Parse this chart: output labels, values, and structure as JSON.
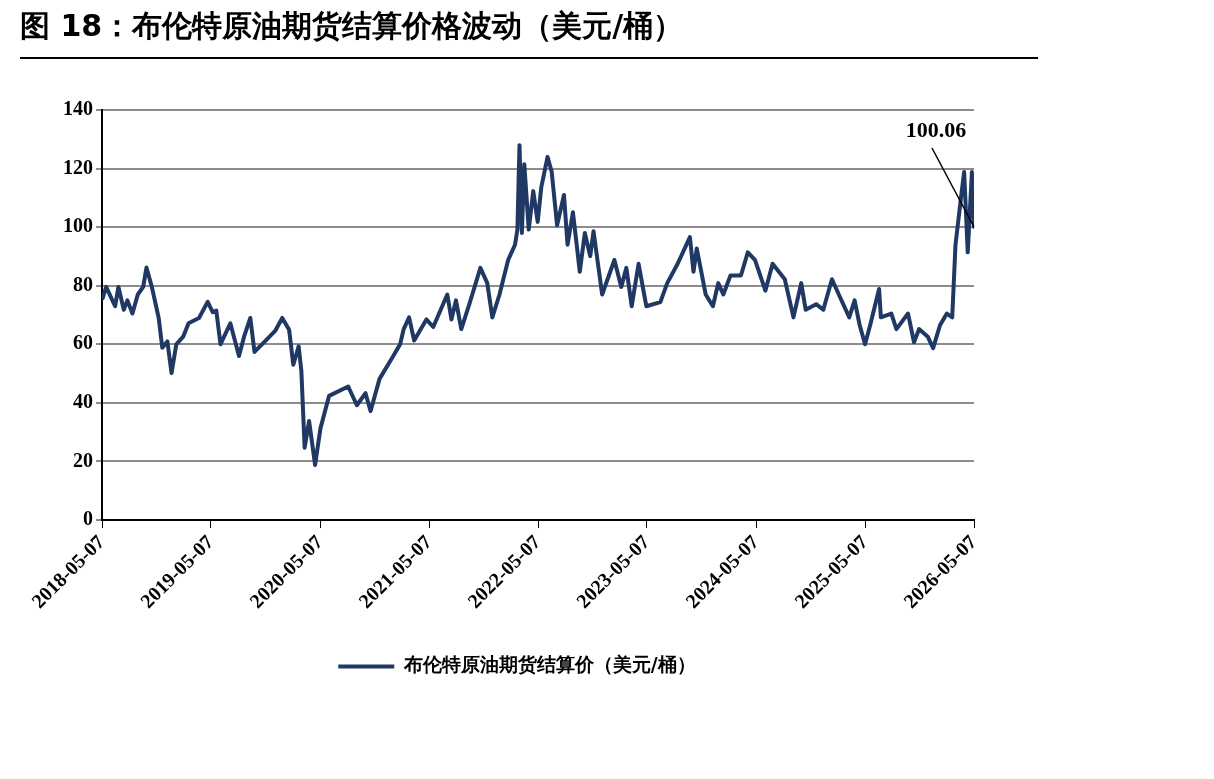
{
  "chart_data": {
    "type": "line",
    "title": "图 18：布伦特原油期货结算价格波动（美元/桶）",
    "x": [
      "2018-05-09",
      "2018-05-21",
      "2018-06-20",
      "2018-07-01",
      "2018-07-19",
      "2018-07-31",
      "2018-08-17",
      "2018-09-04",
      "2018-09-22",
      "2018-10-03",
      "2018-10-21",
      "2018-11-13",
      "2018-11-25",
      "2018-12-12",
      "2018-12-26",
      "2019-01-11",
      "2019-02-03",
      "2019-02-21",
      "2019-03-28",
      "2019-04-26",
      "2019-05-13",
      "2019-05-25",
      "2019-06-08",
      "2019-07-11",
      "2019-08-09",
      "2019-08-26",
      "2019-09-16",
      "2019-09-30",
      "2019-11-04",
      "2019-12-09",
      "2020-01-01",
      "2020-01-24",
      "2020-02-07",
      "2020-02-25",
      "2020-03-05",
      "2020-03-16",
      "2020-03-31",
      "2020-04-20",
      "2020-05-08",
      "2020-06-06",
      "2020-08-09",
      "2020-09-07",
      "2020-10-06",
      "2020-10-23",
      "2020-11-22",
      "2021-01-07",
      "2021-01-30",
      "2021-02-11",
      "2021-03-01",
      "2021-03-18",
      "2021-04-28",
      "2021-05-21",
      "2021-07-07",
      "2021-07-21",
      "2021-08-05",
      "2021-08-23",
      "2021-09-21",
      "2021-10-26",
      "2021-11-18",
      "2021-12-05",
      "2021-12-29",
      "2022-01-27",
      "2022-02-19",
      "2022-02-27",
      "2022-03-06",
      "2022-03-14",
      "2022-03-22",
      "2022-04-06",
      "2022-04-21",
      "2022-05-06",
      "2022-05-18",
      "2022-06-08",
      "2022-06-22",
      "2022-07-10",
      "2022-08-02",
      "2022-08-14",
      "2022-09-01",
      "2022-09-24",
      "2022-10-11",
      "2022-10-29",
      "2022-11-09",
      "2022-12-08",
      "2023-01-18",
      "2023-02-10",
      "2023-02-27",
      "2023-03-17",
      "2023-04-09",
      "2023-05-05",
      "2023-06-21",
      "2023-07-14",
      "2023-08-18",
      "2023-09-28",
      "2023-10-10",
      "2023-10-21",
      "2023-11-20",
      "2023-12-14",
      "2024-01-01",
      "2024-01-18",
      "2024-02-11",
      "2024-03-17",
      "2024-04-09",
      "2024-05-03",
      "2024-06-07",
      "2024-07-01",
      "2024-08-11",
      "2024-09-09",
      "2024-10-05",
      "2024-10-20",
      "2024-11-24",
      "2024-12-18",
      "2025-01-16",
      "2025-02-08",
      "2025-03-15",
      "2025-04-02",
      "2025-04-19",
      "2025-05-07",
      "2025-05-24",
      "2025-06-23",
      "2025-06-29",
      "2025-08-03",
      "2025-08-20",
      "2025-09-28",
      "2025-10-18",
      "2025-11-04",
      "2025-12-03",
      "2025-12-21",
      "2026-01-13",
      "2026-02-05",
      "2026-02-23",
      "2026-03-06",
      "2026-03-24",
      "2026-04-04",
      "2026-04-16",
      "2026-04-30",
      "2026-05-07"
    ],
    "series": [
      {
        "name": "布伦特原油期货结算价（美元/桶）",
        "color": "#203864",
        "values": [
          75.7,
          79.6,
          73,
          79.6,
          71.8,
          75,
          70.5,
          77,
          79.6,
          86.2,
          79.6,
          69,
          58.8,
          61,
          50.2,
          60,
          62.6,
          67.2,
          69,
          74.5,
          71,
          71.5,
          60,
          67.2,
          56,
          62.6,
          69,
          57.4,
          61,
          64.7,
          69,
          65,
          53,
          59.3,
          51,
          24.7,
          33.8,
          18.8,
          31.3,
          42.4,
          45.6,
          39.2,
          43.3,
          37.2,
          48.2,
          56,
          60,
          65.2,
          69.2,
          61.3,
          68.5,
          65.9,
          77,
          68.5,
          75,
          65.2,
          74.4,
          86.1,
          80.9,
          69.2,
          77,
          88.8,
          94,
          99.2,
          128,
          98,
          121.5,
          99.2,
          112.3,
          101.8,
          113.6,
          124,
          118.8,
          100.6,
          111,
          94,
          105.1,
          84.8,
          98,
          90.1,
          98.6,
          77,
          88.8,
          79.6,
          86.1,
          73,
          87.5,
          73,
          74.4,
          80.9,
          87.5,
          96.6,
          84.8,
          92.7,
          77,
          73,
          80.9,
          77,
          83.5,
          83.5,
          91.4,
          88.8,
          78.3,
          87.5,
          82.2,
          69.2,
          80.9,
          71.8,
          73.7,
          71.8,
          82.2,
          77,
          69.2,
          75,
          66.5,
          60,
          66.5,
          78.9,
          69.2,
          70.5,
          65.2,
          70.5,
          60.7,
          65.2,
          62.6,
          58.7,
          66.5,
          70.5,
          69.2,
          94,
          109.7,
          118.8,
          91.4,
          118.8,
          100.06
        ]
      }
    ],
    "xlim": [
      "2018-05-07",
      "2026-05-07"
    ],
    "xticks": [
      "2018-05-07",
      "2019-05-07",
      "2020-05-07",
      "2021-05-07",
      "2022-05-07",
      "2023-05-07",
      "2024-05-07",
      "2025-05-07",
      "2026-05-07"
    ],
    "ylim": [
      0,
      140
    ],
    "yticks": [
      0,
      20,
      40,
      60,
      80,
      100,
      120,
      140
    ],
    "grid": "y",
    "legend": "bottom",
    "marker": "none",
    "line_style": "solid",
    "annotations": [
      {
        "text": "100.06",
        "x": "2026-05-07",
        "y": 100.06
      }
    ]
  }
}
